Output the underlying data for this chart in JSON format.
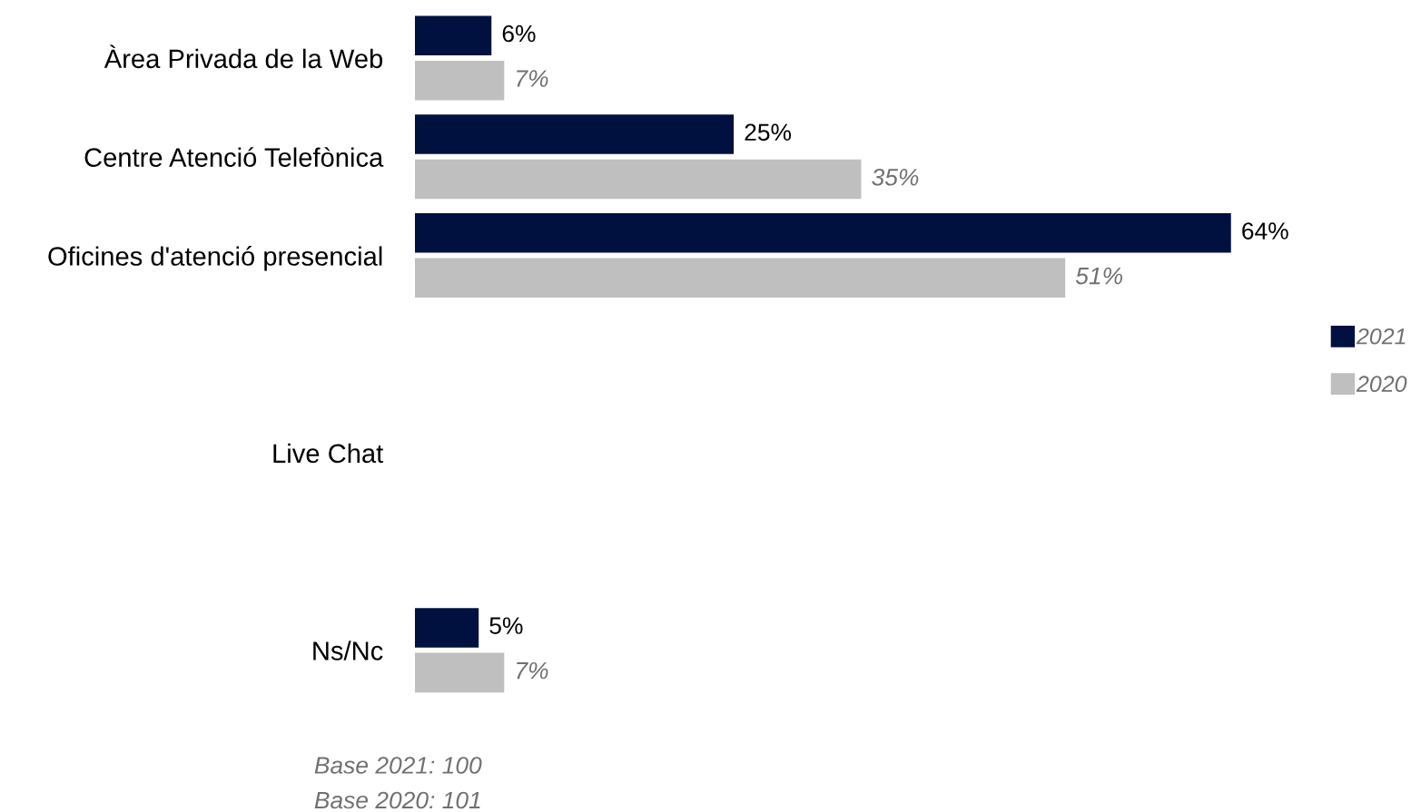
{
  "chart_data": {
    "type": "bar",
    "orientation": "horizontal",
    "categories": [
      "Àrea Privada de la Web",
      "Centre Atenció Telefònica",
      "Oficines d'atenció presencial",
      null,
      "Live Chat",
      null,
      "Ns/Nc"
    ],
    "series": [
      {
        "name": "2021",
        "color": "#00103f",
        "values": [
          6,
          25,
          64,
          null,
          null,
          null,
          5
        ],
        "value_labels": [
          "6%",
          "25%",
          "64%",
          null,
          null,
          null,
          "5%"
        ]
      },
      {
        "name": "2020",
        "color": "#bfbfbf",
        "values": [
          7,
          35,
          51,
          null,
          null,
          null,
          7
        ],
        "value_labels": [
          "7%",
          "35%",
          "51%",
          null,
          null,
          null,
          "7%"
        ]
      }
    ],
    "legend": "right",
    "grid": false,
    "annotations": [
      "Base 2021: 100",
      "Base 2020: 101"
    ]
  }
}
